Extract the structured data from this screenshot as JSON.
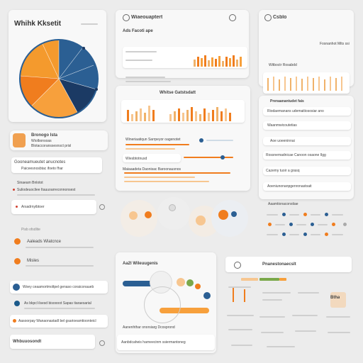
{
  "app": {
    "title": "Whihk Kksetit"
  },
  "top_center": {
    "title": "Wiaeouaptert",
    "subtitle": "Ads Facoti ape"
  },
  "top_right": {
    "title": "Csblo",
    "row1": "Fosnanhot Mits ssi",
    "row2": "Witboctr Rosabdd"
  },
  "mid_center": {
    "title": "Whitse Gatstsdatt",
    "row1": "Wineriaatiqun Sarrpeyor oagenotet",
    "row2": "Wiesbtotnusd",
    "row3": "Maiaaadeta Daonisac Baroonausnos"
  },
  "left": {
    "item1_title": "Bronogo Ista",
    "item1_sub": "Wiolbonsoas",
    "item1_sub2": "Blotaccoranssesnsct prisl",
    "item2": "Gooneamueutet anucnotes",
    "item2_sub": "Paiceesnosbtac ifoeto fhar",
    "item3": "Sinaeam Bnlotot",
    "item3_sub": "Suliodeuocliee Itauuoarreconnonsest",
    "item4": "Arsadrnyibtoer",
    "section": "Pisb ofsdlite",
    "item5": "Aaleads Wiatcnce",
    "item6": "Misles",
    "item7": "Woey ceaamortmoltpel genaso coraiconaueb",
    "item8": "As bkpcl ilsesd bisoooot Sapas tiaraesarial",
    "item9": "Aasoorpay Wanaonastadl bel gsarioeamtioonteicl",
    "item10": "Whbuuosondt"
  },
  "right": {
    "header": "Prenaanantudet fais",
    "r1": "Riodaemanans udemaitiososiar ano",
    "r2": "Waanmwicoutetias",
    "r3": "Aoe uoeeninnai",
    "r4": "Rossnemadnicae Canoon osaone Ilgg",
    "r5": "Cazemy tuoir a grasq",
    "r6": "Aoeniunonanpgenronastoait",
    "section": "Aaamtionaconstiae"
  },
  "bottom_center": {
    "title": "Aa2l Wileuugenis",
    "footer": "Aanenhthar onorsiarg Dcosprond",
    "footer2": "Aanbdcaheis harneecinm ssiermantoneg"
  },
  "bottom_right": {
    "title": "Pnanestonaecslt",
    "badge": "Btha"
  },
  "colors": {
    "orange": "#f07d1e",
    "blue": "#2b5f93",
    "darkblue": "#1b3a64",
    "light_orange": "#f7c690"
  }
}
